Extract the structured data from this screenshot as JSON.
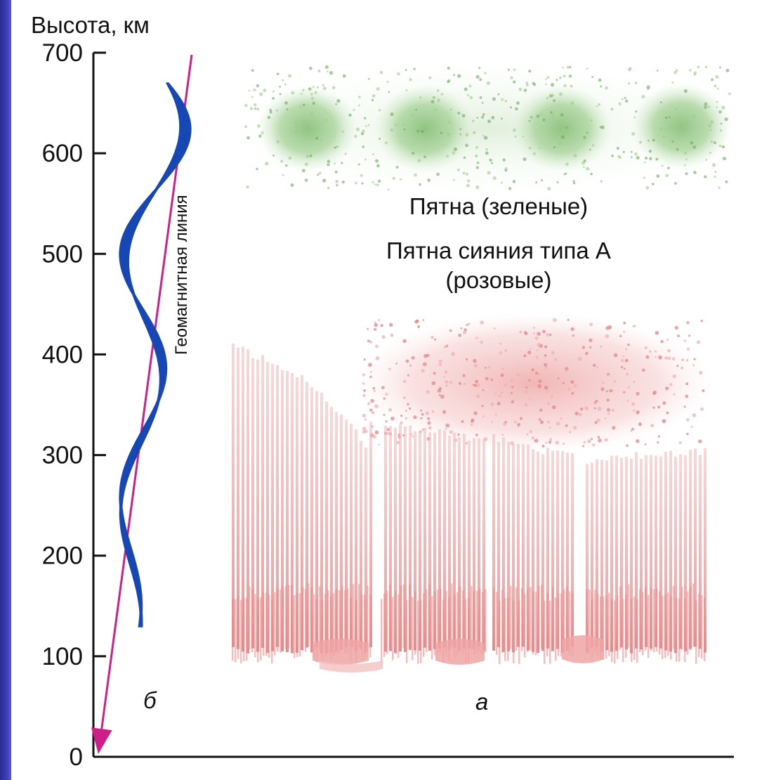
{
  "chart_data": {
    "type": "diagram",
    "ylabel": "Высота, км",
    "ylim": [
      0,
      700
    ],
    "y_ticks": [
      0,
      100,
      200,
      300,
      400,
      500,
      600,
      700
    ],
    "line_label": "Геомагнитная линия",
    "green_label": "Пятна (зеленые)",
    "pink_label_line1": "Пятна сияния типа А",
    "pink_label_line2": "(розовые)",
    "panel_b_label": "б",
    "panel_a_label": "а",
    "colors": {
      "axis": "#111111",
      "geomagnetic_line": "#cc1f8a",
      "wave": "#1747b3",
      "green_spots": "#7db36e",
      "pink_aurora": "#e79a9a"
    }
  }
}
